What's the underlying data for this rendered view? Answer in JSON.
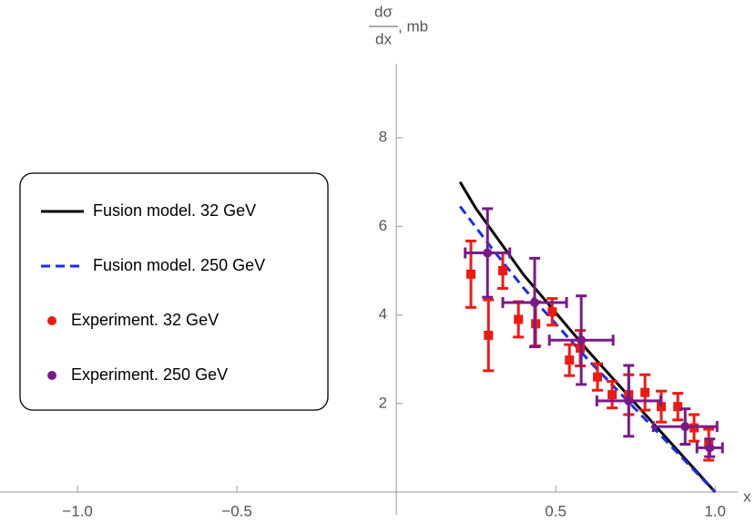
{
  "chart_data": {
    "type": "scatter",
    "ylabel_numerator": "dσ",
    "ylabel_denominator": "dx",
    "ylabel_unit": ", mb",
    "xlabel": "x",
    "xlim": [
      -1.243,
      1.071
    ],
    "ylim": [
      0,
      9.67
    ],
    "xticks": [
      {
        "value": -1,
        "label": "−1.0"
      },
      {
        "value": -0.5,
        "label": "−0.5"
      },
      0.5,
      {
        "value": 1,
        "label": "1.0"
      }
    ],
    "yticks": [
      2,
      4,
      6,
      8
    ],
    "series": [
      {
        "name": "Fusion model. 32 GeV",
        "color": "#000000",
        "mode": "line",
        "dashed": false,
        "x": [
          0.2,
          0.25,
          0.3,
          0.4,
          0.5,
          0.6,
          0.7,
          0.8,
          0.9,
          1.0
        ],
        "values": [
          7.0,
          6.4,
          5.9,
          4.9,
          4.05,
          3.2,
          2.4,
          1.6,
          0.8,
          0
        ]
      },
      {
        "name": "Fusion model. 250 GeV",
        "color": "#1a2cf0",
        "mode": "line",
        "dashed": true,
        "x": [
          0.2,
          0.3,
          0.4,
          0.5,
          0.6,
          0.7,
          0.8,
          0.9,
          1.0
        ],
        "values": [
          6.45,
          5.5,
          4.6,
          3.8,
          3.0,
          2.25,
          1.5,
          0.75,
          0
        ]
      },
      {
        "name": "Experiment. 32 GeV",
        "color": "#ee1a12",
        "mode": "markers",
        "marker": "square",
        "x": [
          0.234,
          0.289,
          0.334,
          0.383,
          0.437,
          0.489,
          0.543,
          0.577,
          0.631,
          0.677,
          0.729,
          0.78,
          0.831,
          0.883,
          0.934,
          0.98
        ],
        "values": [
          4.92,
          3.54,
          5.0,
          3.9,
          3.8,
          4.07,
          2.98,
          3.25,
          2.6,
          2.2,
          2.2,
          2.25,
          1.93,
          1.93,
          1.45,
          1.07
        ],
        "yerr": [
          0.75,
          0.8,
          0.4,
          0.4,
          0.5,
          0.3,
          0.35,
          0.4,
          0.3,
          0.3,
          0.45,
          0.4,
          0.35,
          0.3,
          0.3,
          0.35
        ]
      },
      {
        "name": "Experiment. 250 GeV",
        "color": "#7a1a8a",
        "mode": "markers",
        "marker": "circle",
        "x": [
          0.286,
          0.434,
          0.58,
          0.729,
          0.906,
          0.983
        ],
        "values": [
          5.4,
          4.28,
          3.43,
          2.06,
          1.48,
          1.0
        ],
        "yerr": [
          1.0,
          1.0,
          1.0,
          0.8,
          0.4,
          0.2
        ],
        "xerr": [
          0.07,
          0.1,
          0.1,
          0.1,
          0.1,
          0.04
        ]
      }
    ]
  }
}
